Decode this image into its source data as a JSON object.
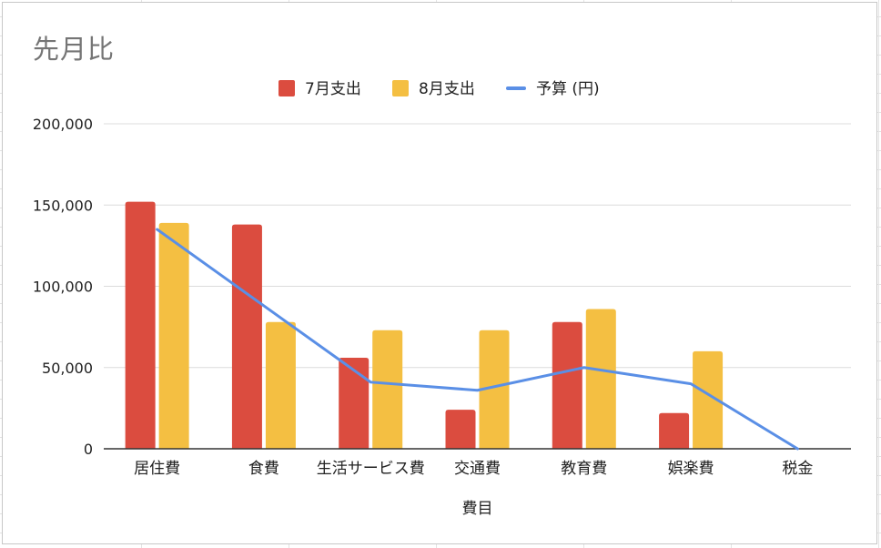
{
  "chart_data": {
    "type": "bar",
    "title": "先月比",
    "xlabel": "費目",
    "ylabel": "",
    "ylim": [
      0,
      200000
    ],
    "yticks": [
      0,
      50000,
      100000,
      150000,
      200000
    ],
    "ytick_labels": [
      "0",
      "50,000",
      "100,000",
      "150,000",
      "200,000"
    ],
    "grid": true,
    "legend_position": "top",
    "categories": [
      "居住費",
      "食費",
      "生活サービス費",
      "交通費",
      "教育費",
      "娯楽費",
      "税金"
    ],
    "series": [
      {
        "name": "7月支出",
        "type": "bar",
        "color": "#db4c3f",
        "values": [
          152000,
          138000,
          56000,
          24000,
          78000,
          22000,
          0
        ]
      },
      {
        "name": "8月支出",
        "type": "bar",
        "color": "#f4bf42",
        "values": [
          139000,
          78000,
          73000,
          73000,
          86000,
          60000,
          0
        ]
      },
      {
        "name": "予算 (円)",
        "type": "line",
        "color": "#5a8fe6",
        "values": [
          135000,
          88000,
          41000,
          36000,
          50000,
          40000,
          0
        ]
      }
    ]
  }
}
